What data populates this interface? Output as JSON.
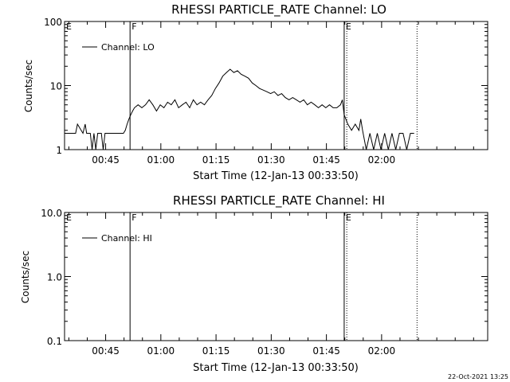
{
  "footer": {
    "timestamp": "22-Oct-2021 13:25"
  },
  "chart_data": [
    {
      "type": "line",
      "title": "RHESSI PARTICLE_RATE Channel: LO",
      "xlabel": "Start Time (12-Jan-13 00:33:50)",
      "ylabel": "Counts/sec",
      "yscale": "log",
      "ylim": [
        1,
        100
      ],
      "ytick_labels": [
        "1",
        "10",
        "100"
      ],
      "ytick_values": [
        1,
        10,
        100
      ],
      "xlim_minutes": [
        0,
        115
      ],
      "xtick_labels": [
        "00:45",
        "01:00",
        "01:15",
        "01:30",
        "01:45",
        "02:00"
      ],
      "xtick_minutes": [
        11.17,
        26.17,
        41.17,
        56.17,
        71.17,
        86.17
      ],
      "grid": false,
      "legend": {
        "position": "top-left",
        "entries": [
          "Channel: LO"
        ]
      },
      "annotations": [
        {
          "text": "E",
          "x_minutes": 0,
          "linestyle": "none"
        },
        {
          "text": "F",
          "x_minutes": 17.8,
          "linestyle": "solid"
        },
        {
          "text": "E",
          "x_minutes": 76.0,
          "linestyle": "solid"
        },
        {
          "text": "",
          "x_minutes": 76.7,
          "linestyle": "dotted"
        },
        {
          "text": "",
          "x_minutes": 95.8,
          "linestyle": "dotted"
        }
      ],
      "series": [
        {
          "name": "Channel: LO",
          "x_minutes": [
            0,
            2,
            3,
            3.5,
            5,
            5.6,
            6,
            7,
            7.5,
            8,
            8.5,
            9,
            10,
            10.5,
            11,
            12,
            13,
            14,
            15,
            16,
            16.5,
            17,
            17.5,
            18,
            18.5,
            19,
            20,
            21,
            22,
            23,
            24,
            25,
            26,
            27,
            28,
            29,
            30,
            31,
            32,
            33,
            34,
            35,
            36,
            37,
            38,
            39,
            40,
            41,
            42,
            43,
            44,
            45,
            46,
            47,
            48,
            49,
            50,
            51,
            52,
            53,
            54,
            55,
            56,
            57,
            58,
            59,
            60,
            61,
            62,
            63,
            64,
            65,
            66,
            67,
            68,
            69,
            70,
            71,
            72,
            73,
            74,
            75,
            75.5,
            76,
            77,
            78,
            79,
            80,
            80.5,
            81,
            82,
            83,
            84,
            85,
            86,
            87,
            88,
            89,
            90,
            91,
            92,
            93,
            94,
            95
          ],
          "y": [
            1.8,
            1.8,
            1.8,
            2.5,
            1.8,
            2.5,
            1.8,
            1.8,
            1.0,
            1.8,
            1.0,
            1.8,
            1.8,
            1.0,
            1.8,
            1.8,
            1.8,
            1.8,
            1.8,
            1.8,
            2.0,
            2.5,
            3.0,
            3.5,
            4.0,
            4.5,
            5.0,
            4.5,
            5.0,
            6.0,
            5.0,
            4.0,
            5.0,
            4.5,
            5.5,
            5.0,
            6.0,
            4.5,
            5.0,
            5.5,
            4.5,
            6.0,
            5.0,
            5.5,
            5.0,
            6.0,
            7.0,
            9.0,
            11.0,
            14.0,
            16.0,
            18.0,
            16.0,
            17.0,
            15.0,
            14.0,
            13.0,
            11.0,
            10.0,
            9.0,
            8.5,
            8.0,
            7.5,
            8.0,
            7.0,
            7.5,
            6.5,
            6.0,
            6.5,
            6.0,
            5.5,
            6.0,
            5.0,
            5.5,
            5.0,
            4.5,
            5.0,
            4.5,
            5.0,
            4.5,
            4.5,
            5.0,
            6.0,
            3.5,
            2.5,
            2.0,
            2.5,
            2.0,
            3.0,
            2.0,
            1.0,
            1.8,
            1.0,
            1.8,
            1.0,
            1.8,
            1.0,
            1.8,
            1.0,
            1.8,
            1.8,
            1.0,
            1.8,
            1.8
          ]
        }
      ]
    },
    {
      "type": "line",
      "title": "RHESSI PARTICLE_RATE Channel: HI",
      "xlabel": "Start Time (12-Jan-13 00:33:50)",
      "ylabel": "Counts/sec",
      "yscale": "log",
      "ylim": [
        0.1,
        10
      ],
      "ytick_labels": [
        "0.1",
        "1.0",
        "10.0"
      ],
      "ytick_values": [
        0.1,
        1,
        10
      ],
      "xlim_minutes": [
        0,
        115
      ],
      "xtick_labels": [
        "00:45",
        "01:00",
        "01:15",
        "01:30",
        "01:45",
        "02:00"
      ],
      "xtick_minutes": [
        11.17,
        26.17,
        41.17,
        56.17,
        71.17,
        86.17
      ],
      "grid": false,
      "legend": {
        "position": "top-left",
        "entries": [
          "Channel: HI"
        ]
      },
      "annotations": [
        {
          "text": "E",
          "x_minutes": 0,
          "linestyle": "none"
        },
        {
          "text": "F",
          "x_minutes": 17.8,
          "linestyle": "solid"
        },
        {
          "text": "E",
          "x_minutes": 76.0,
          "linestyle": "solid"
        },
        {
          "text": "",
          "x_minutes": 76.7,
          "linestyle": "dotted"
        },
        {
          "text": "",
          "x_minutes": 95.8,
          "linestyle": "dotted"
        }
      ],
      "series": [
        {
          "name": "Channel: HI",
          "x_minutes": [],
          "y": []
        }
      ]
    }
  ]
}
